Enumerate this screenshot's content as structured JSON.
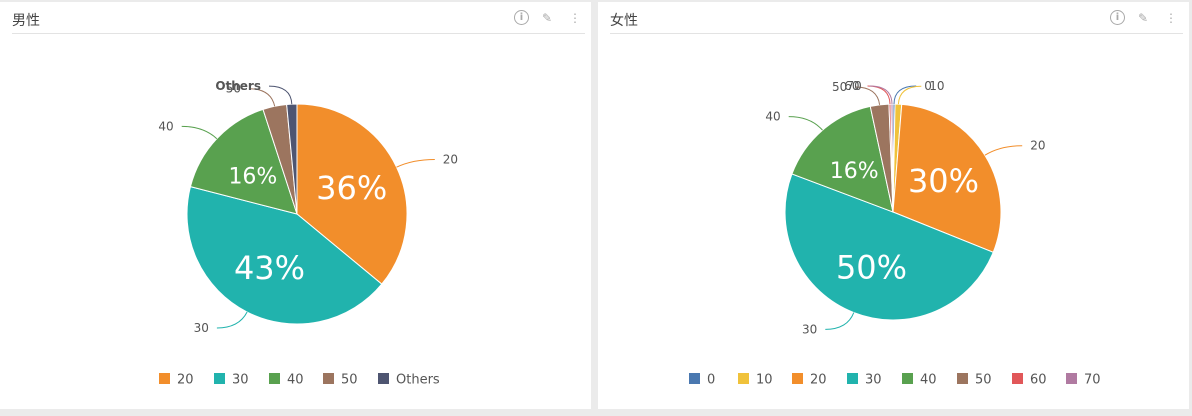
{
  "panels": [
    {
      "title": "男性"
    },
    {
      "title": "女性"
    }
  ],
  "icons": [
    "info-icon",
    "pencil-icon",
    "more-vertical-icon"
  ],
  "colors": {
    "0": "#4a78b0",
    "10": "#f0c23b",
    "20": "#f28e2b",
    "30": "#21b3ad",
    "40": "#59a14f",
    "50": "#9c755f",
    "60": "#e15759",
    "70": "#b07aa1",
    "Others": "#4e5571"
  },
  "chart_data": [
    {
      "type": "pie",
      "title": "男性",
      "slices": [
        {
          "label": "20",
          "value": 36,
          "display": "36%"
        },
        {
          "label": "30",
          "value": 43,
          "display": "43%"
        },
        {
          "label": "40",
          "value": 16,
          "display": "16%"
        },
        {
          "label": "50",
          "value": 3.5,
          "display": ""
        },
        {
          "label": "Others",
          "value": 1.5,
          "display": ""
        }
      ],
      "legend": [
        "20",
        "30",
        "40",
        "50",
        "Others"
      ],
      "legend_position": "bottom"
    },
    {
      "type": "pie",
      "title": "女性",
      "slices": [
        {
          "label": "0",
          "value": 0.3,
          "display": ""
        },
        {
          "label": "10",
          "value": 1.0,
          "display": ""
        },
        {
          "label": "20",
          "value": 30,
          "display": "30%"
        },
        {
          "label": "30",
          "value": 50,
          "display": "50%"
        },
        {
          "label": "40",
          "value": 16,
          "display": "16%"
        },
        {
          "label": "50",
          "value": 2.8,
          "display": ""
        },
        {
          "label": "60",
          "value": 0.3,
          "display": ""
        },
        {
          "label": "70",
          "value": 0.3,
          "display": ""
        }
      ],
      "legend": [
        "0",
        "10",
        "20",
        "30",
        "40",
        "50",
        "60",
        "70"
      ],
      "legend_position": "bottom"
    }
  ]
}
